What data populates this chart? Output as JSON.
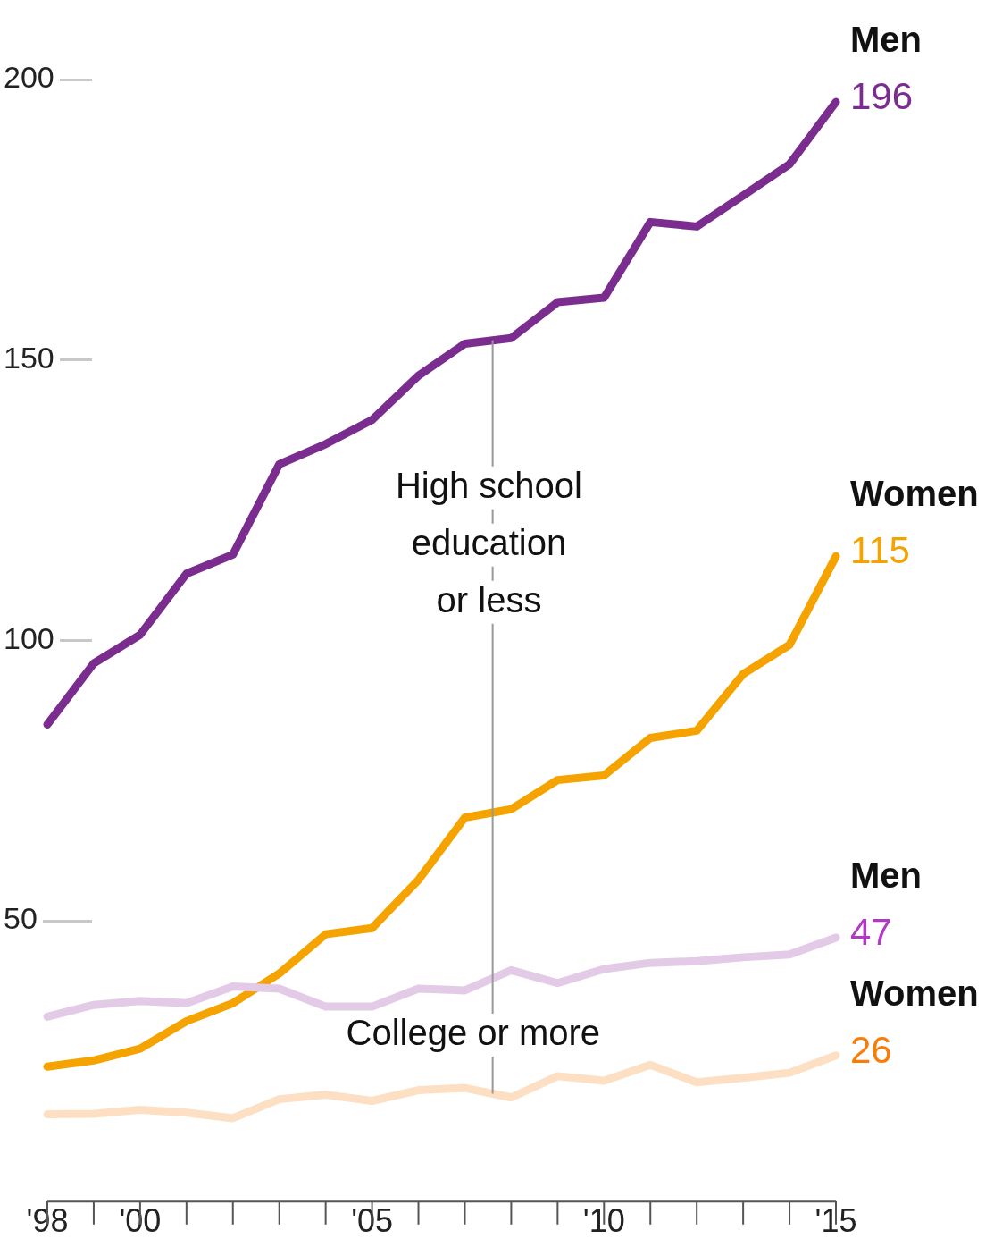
{
  "chart_data": {
    "type": "line",
    "x": [
      1998,
      1999,
      2000,
      2001,
      2002,
      2003,
      2004,
      2005,
      2006,
      2007,
      2008,
      2009,
      2010,
      2011,
      2012,
      2013,
      2014,
      2015
    ],
    "xlim": [
      1998,
      2015
    ],
    "xticks": [
      {
        "value": 1998,
        "label": "'98"
      },
      {
        "value": 2000,
        "label": "'00"
      },
      {
        "value": 2005,
        "label": "'05"
      },
      {
        "value": 2010,
        "label": "'10"
      },
      {
        "value": 2015,
        "label": "'15"
      }
    ],
    "ylim": [
      0,
      200
    ],
    "yticks": [
      50,
      100,
      150,
      200
    ],
    "marker": "none",
    "line_style": "solid",
    "series": [
      {
        "name": "Men",
        "color": "#7a2d8f",
        "values": [
          85,
          95.9,
          101,
          111.9,
          115.3,
          131.4,
          135,
          139.3,
          147.2,
          152.9,
          153.9,
          160.3,
          161.1,
          174.6,
          173.8,
          179.3,
          184.9,
          196
        ],
        "value_labels": [
          null,
          null,
          null,
          null,
          null,
          null,
          null,
          null,
          null,
          null,
          null,
          null,
          null,
          null,
          null,
          null,
          null,
          "196"
        ]
      },
      {
        "name": "Women",
        "color": "#f5a300",
        "values": [
          24,
          25.1,
          27.2,
          32.1,
          35.3,
          40.6,
          47.6,
          48.7,
          57.3,
          68.4,
          69.9,
          75.1,
          75.9,
          82.6,
          83.9,
          94,
          99.2,
          115
        ],
        "value_labels": [
          null,
          null,
          null,
          null,
          null,
          null,
          null,
          null,
          null,
          null,
          null,
          null,
          null,
          null,
          null,
          null,
          null,
          "115"
        ]
      },
      {
        "name": "Men",
        "color": "#e3cbe7",
        "values": [
          32.9,
          35,
          35.7,
          35.3,
          38.3,
          37.9,
          34.7,
          34.7,
          37.9,
          37.6,
          41.2,
          38.9,
          41.4,
          42.5,
          42.8,
          43.5,
          44,
          47
        ],
        "value_labels": [
          null,
          null,
          null,
          null,
          null,
          null,
          null,
          null,
          null,
          null,
          null,
          null,
          null,
          null,
          null,
          null,
          null,
          "47"
        ]
      },
      {
        "name": "Women",
        "color": "#fde0c4",
        "values": [
          15.5,
          15.6,
          16.3,
          15.8,
          14.8,
          18.2,
          19,
          17.9,
          19.8,
          20.2,
          18.5,
          22.3,
          21.5,
          24.3,
          21.2,
          22,
          22.9,
          26
        ],
        "value_labels": [
          null,
          null,
          null,
          null,
          null,
          null,
          null,
          null,
          null,
          null,
          null,
          null,
          null,
          null,
          null,
          null,
          null,
          "26"
        ]
      }
    ],
    "ref_lines": [
      {
        "axis": "x",
        "value": 2007.6,
        "color": "#999999"
      }
    ],
    "annotations": [
      "High school\neducation\nor less",
      "College or more"
    ]
  }
}
